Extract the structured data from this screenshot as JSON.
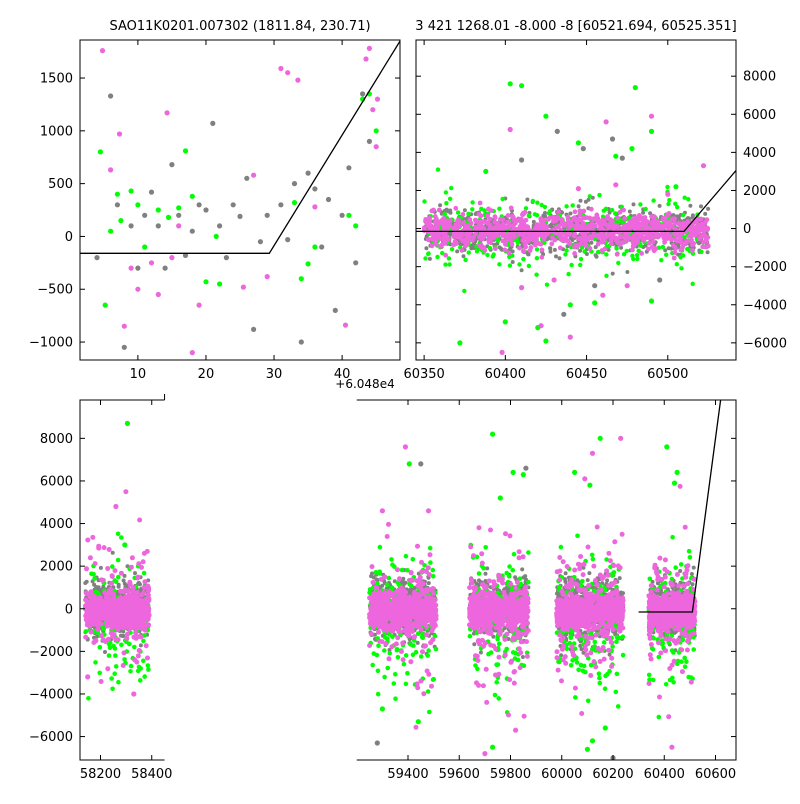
{
  "figure": {
    "background": "#ffffff",
    "colors": {
      "grey": "#808080",
      "green": "#00ff00",
      "magenta": "#ee66dd",
      "model_line": "#000000"
    }
  },
  "chart_data": [
    {
      "id": "top_left",
      "type": "scatter",
      "title": "SAO11K0201.007302 (1811.84, 230.71)",
      "xlim": [
        1.5,
        48.5
      ],
      "ylim": [
        -1170,
        1860
      ],
      "xticks": [
        10,
        20,
        30,
        40
      ],
      "yticks": [
        -1000,
        -500,
        0,
        500,
        1000,
        1500
      ],
      "tick_labels_x": [
        "10",
        "20",
        "30",
        "40"
      ],
      "tick_labels_y": [
        "−1000",
        "−500",
        "0",
        "500",
        "1000",
        "1500"
      ],
      "y_axis_side": "left",
      "x_offset_label": "+6.048e4",
      "model_line": [
        [
          1.5,
          -160
        ],
        [
          29.3,
          -160
        ],
        [
          48.5,
          1850
        ]
      ],
      "series": [
        {
          "color": "grey",
          "x": [
            4,
            6,
            7,
            8,
            9,
            10,
            11,
            12,
            13,
            14,
            15,
            16,
            17,
            18,
            19,
            20,
            21,
            22,
            23,
            24,
            25,
            26,
            27,
            28,
            29,
            31,
            32,
            33,
            34,
            35,
            36,
            37,
            38,
            39,
            40,
            41,
            42,
            43,
            44
          ],
          "y": [
            -200,
            1330,
            300,
            -1050,
            100,
            -300,
            200,
            420,
            100,
            -300,
            680,
            200,
            -180,
            50,
            300,
            250,
            1070,
            100,
            -200,
            300,
            190,
            550,
            -880,
            -50,
            200,
            300,
            -30,
            500,
            -1000,
            600,
            450,
            -100,
            350,
            -700,
            200,
            650,
            -250,
            1350,
            900
          ]
        },
        {
          "color": "green",
          "x": [
            4.5,
            5.2,
            6,
            7,
            7.5,
            9,
            10,
            11,
            13,
            14.5,
            16,
            17,
            18,
            20,
            21.5,
            22,
            33,
            34,
            35,
            36,
            41,
            42,
            43,
            44,
            45
          ],
          "y": [
            800,
            -650,
            50,
            400,
            150,
            430,
            300,
            -100,
            250,
            180,
            270,
            810,
            380,
            -430,
            0,
            -450,
            320,
            -400,
            -260,
            -100,
            200,
            100,
            1300,
            1350,
            1000
          ]
        },
        {
          "color": "magenta",
          "x": [
            4.8,
            6,
            7.3,
            8,
            9,
            10,
            12,
            13,
            14.3,
            15,
            16,
            18,
            19,
            25.5,
            27,
            29,
            31,
            32,
            33.5,
            36,
            40.5,
            43.5,
            44,
            44.5,
            45,
            45.2
          ],
          "y": [
            1760,
            630,
            970,
            -850,
            -300,
            -500,
            -250,
            -550,
            1170,
            -200,
            100,
            -1100,
            -650,
            -480,
            580,
            -380,
            1590,
            1550,
            1480,
            280,
            -840,
            1680,
            1780,
            1200,
            850,
            1300
          ]
        }
      ]
    },
    {
      "id": "top_right",
      "type": "scatter",
      "title": "3 421 1268.01 -8.000 -8 [60521.694, 60525.351]",
      "xlim": [
        60345,
        60542
      ],
      "ylim": [
        -6900,
        9900
      ],
      "xticks": [
        60350,
        60400,
        60450,
        60500
      ],
      "yticks": [
        -6000,
        -4000,
        -2000,
        0,
        2000,
        4000,
        6000,
        8000
      ],
      "tick_labels_x": [
        "60350",
        "60400",
        "60450",
        "60500"
      ],
      "tick_labels_y": [
        "−6000",
        "−4000",
        "−2000",
        "0",
        "2000",
        "4000",
        "6000",
        "8000"
      ],
      "y_axis_side": "right",
      "model_line": [
        [
          60345,
          -150
        ],
        [
          60510,
          -150
        ],
        [
          60542,
          3050
        ]
      ],
      "cloud": {
        "x_range": [
          60350,
          60525
        ],
        "center": -100,
        "spread": 450,
        "points": 900
      },
      "series": [
        {
          "color": "green",
          "x": [
            60403,
            60410,
            60388,
            60425,
            60445,
            60468,
            60480,
            60490,
            60372,
            60420,
            60425,
            60455,
            60440,
            60490,
            60400,
            60478,
            60505
          ],
          "y": [
            7600,
            7500,
            3000,
            5900,
            4500,
            3800,
            7400,
            5100,
            -6000,
            -5200,
            -5900,
            -3900,
            -4000,
            -3800,
            -4900,
            4200,
            2200
          ]
        },
        {
          "color": "magenta",
          "x": [
            60403,
            60462,
            60398,
            60430,
            60445,
            60468,
            60490,
            60522,
            60410,
            60422,
            60440,
            60460,
            60475,
            60500
          ],
          "y": [
            5200,
            5600,
            -6500,
            -2700,
            2100,
            2300,
            5900,
            3300,
            -3100,
            -5100,
            -5700,
            -3500,
            -3000,
            1800
          ]
        },
        {
          "color": "grey",
          "x": [
            60432,
            60448,
            60466,
            60436,
            60472,
            60455,
            60410,
            60495
          ],
          "y": [
            5100,
            4200,
            4700,
            -4500,
            3700,
            -3000,
            3600,
            -2700
          ]
        }
      ]
    },
    {
      "id": "bottom",
      "type": "scatter",
      "title": "",
      "xlim": [
        58120,
        60680
      ],
      "ylim": [
        -7100,
        9800
      ],
      "xticks": [
        58200,
        58400,
        59400,
        59600,
        59800,
        60000,
        60200,
        60400,
        60600
      ],
      "yticks": [
        -6000,
        -4000,
        -2000,
        0,
        2000,
        4000,
        6000,
        8000
      ],
      "tick_labels_x": [
        "58200",
        "58400",
        "59400",
        "59600",
        "59800",
        "60000",
        "60200",
        "60400",
        "60600"
      ],
      "tick_labels_y": [
        "−6000",
        "−4000",
        "−2000",
        "0",
        "2000",
        "4000",
        "6000",
        "8000"
      ],
      "y_axis_side": "left",
      "model_line": [
        [
          60300,
          -150
        ],
        [
          60510,
          -150
        ],
        [
          60620,
          9800
        ]
      ],
      "seasons": [
        {
          "x_range": [
            58140,
            58390
          ],
          "points": 450
        },
        {
          "x_range": [
            59250,
            59510
          ],
          "points": 520
        },
        {
          "x_range": [
            59640,
            59870
          ],
          "points": 480
        },
        {
          "x_range": [
            59980,
            60240
          ],
          "points": 560
        },
        {
          "x_range": [
            60340,
            60520
          ],
          "points": 380
        }
      ],
      "series": [
        {
          "color": "green",
          "x": [
            58305,
            58295,
            59405,
            59730,
            59760,
            59810,
            59850,
            60050,
            60110,
            60150,
            60410,
            60440,
            60450,
            59300,
            59440,
            59730,
            60170,
            60100,
            60120
          ],
          "y": [
            8700,
            3000,
            6800,
            8200,
            5200,
            6400,
            6300,
            6400,
            5800,
            8000,
            7600,
            5900,
            6400,
            -4700,
            -5300,
            -6500,
            -5600,
            -6600,
            -6200
          ]
        },
        {
          "color": "magenta",
          "x": [
            59390,
            59480,
            60120,
            60090,
            60230,
            58260,
            59300,
            59700,
            59820,
            60430,
            58330,
            58150
          ],
          "y": [
            7600,
            4600,
            7300,
            6100,
            8000,
            4800,
            4600,
            -6800,
            -5700,
            -6500,
            -4000,
            -3200
          ]
        },
        {
          "color": "grey",
          "x": [
            59450,
            59860,
            60200,
            59280
          ],
          "y": [
            6800,
            6600,
            -7000,
            -6300
          ]
        }
      ]
    }
  ]
}
